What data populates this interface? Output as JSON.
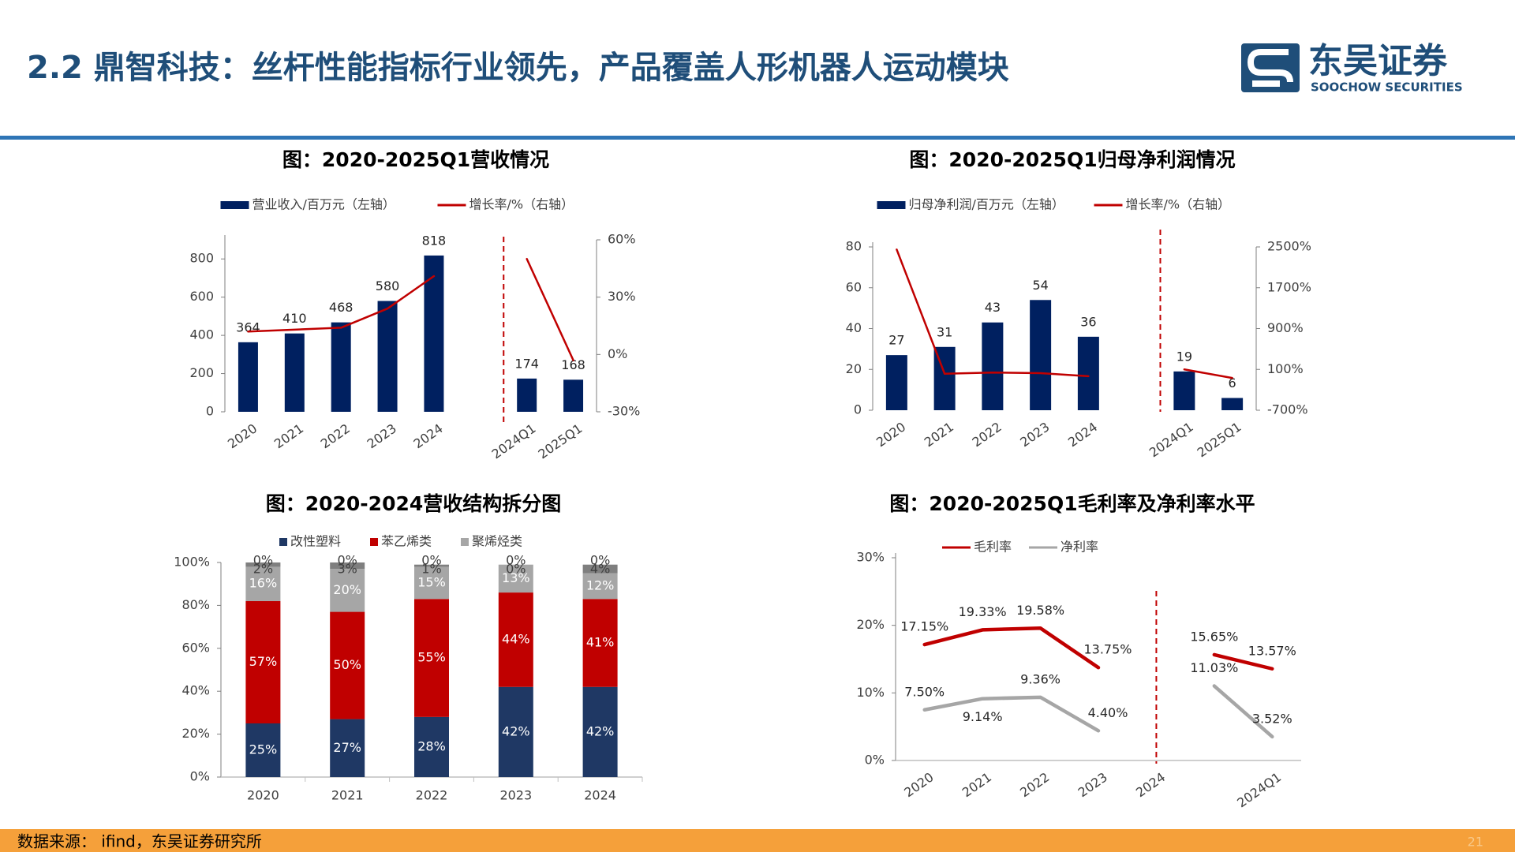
{
  "header": {
    "title": "2.2 鼎智科技：丝杆性能指标行业领先，产品覆盖人形机器人运动模块",
    "logo": "东吴证券",
    "logo_en": "SOOCHOW SECURITIES"
  },
  "chart_data": [
    {
      "type": "bar",
      "title": "图：2020-2025Q1营收情况",
      "categories": [
        "2020",
        "2021",
        "2022",
        "2023",
        "2024",
        null,
        "2024Q1",
        "2025Q1"
      ],
      "series": [
        {
          "name": "营业收入/百万元（左轴）",
          "color": "#002060",
          "values": [
            364,
            410,
            468,
            580,
            818,
            null,
            174,
            168
          ],
          "data_labels": true
        },
        {
          "name": "增长率/%（右轴）",
          "type": "line",
          "axis": "y2",
          "color": "#c00000",
          "values": [
            12,
            13,
            14,
            24,
            41,
            null,
            50,
            -3
          ]
        }
      ],
      "ylim": [
        0,
        900
      ],
      "yticks": [
        0,
        200,
        400,
        600,
        800
      ],
      "y2lim": [
        -30,
        60
      ],
      "y2ticks": [
        {
          "value": -30,
          "label": "-30%"
        },
        {
          "value": 0,
          "label": "0%"
        },
        {
          "value": 30,
          "label": "30%"
        },
        {
          "value": 60,
          "label": "60%"
        }
      ]
    },
    {
      "type": "bar",
      "title": "图：2020-2025Q1归母净利润情况",
      "categories": [
        "2020",
        "2021",
        "2022",
        "2023",
        "2024",
        null,
        "2024Q1",
        "2025Q1"
      ],
      "series": [
        {
          "name": "归母净利润/百万元（左轴）",
          "color": "#002060",
          "values": [
            27,
            31,
            43,
            54,
            36,
            null,
            19,
            6
          ],
          "data_labels": true
        },
        {
          "name": "增长率/%（右轴）",
          "type": "line",
          "axis": "y2",
          "color": "#c00000",
          "values": [
            2450,
            15,
            39,
            26,
            -33,
            null,
            100,
            -68
          ]
        }
      ],
      "ylim": [
        0,
        80
      ],
      "yticks": [
        0,
        20,
        40,
        60,
        80
      ],
      "y2lim": [
        -700,
        2500
      ],
      "y2ticks": [
        {
          "value": -700,
          "label": "-700%"
        },
        {
          "value": 100,
          "label": "100%"
        },
        {
          "value": 900,
          "label": "900%"
        },
        {
          "value": 1700,
          "label": "1700%"
        },
        {
          "value": 2500,
          "label": "2500%"
        }
      ]
    },
    {
      "type": "bar",
      "stacked": true,
      "title": "图：2020-2024营收结构拆分图",
      "categories": [
        "2020",
        "2021",
        "2022",
        "2023",
        "2024"
      ],
      "series": [
        {
          "name": "改性塑料",
          "color": "#1f3864",
          "values": [
            25,
            27,
            28,
            42,
            42
          ],
          "value_labels": [
            "25%",
            "27%",
            "28%",
            "42%",
            "42%"
          ]
        },
        {
          "name": "苯乙烯类",
          "color": "#c00000",
          "values": [
            57,
            50,
            55,
            44,
            41
          ],
          "value_labels": [
            "57%",
            "50%",
            "55%",
            "44%",
            "41%"
          ]
        },
        {
          "name": "聚烯烃类",
          "color": "#a6a6a6",
          "values": [
            16,
            20,
            15,
            13,
            12
          ],
          "value_labels": [
            "16%",
            "20%",
            "15%",
            "13%",
            "12%"
          ]
        },
        {
          "color": "#7f7f7f",
          "values": [
            2,
            3,
            1,
            0,
            4
          ],
          "value_labels": [
            "2%",
            "3%",
            "1%",
            "0%",
            "4%"
          ]
        },
        {
          "color": "#262626",
          "values": [
            0,
            0,
            0,
            0,
            0
          ],
          "value_labels": [
            "0%",
            "0%",
            "0%",
            "0%",
            "0%"
          ]
        }
      ],
      "ylim": [
        0,
        100
      ],
      "yticks": [
        {
          "value": 0,
          "label": "0%"
        },
        {
          "value": 20,
          "label": "20%"
        },
        {
          "value": 40,
          "label": "40%"
        },
        {
          "value": 60,
          "label": "60%"
        },
        {
          "value": 80,
          "label": "80%"
        },
        {
          "value": 100,
          "label": "100%"
        }
      ]
    },
    {
      "type": "line",
      "title": "图：2020-2025Q1毛利率及净利率水平",
      "categories": [
        "2020",
        "2021",
        "2022",
        "2023",
        "2024",
        null,
        "2024Q1"
      ],
      "series": [
        {
          "name": "毛利率",
          "color": "#c00000",
          "values": [
            17.15,
            19.33,
            19.58,
            13.75,
            null,
            15.65,
            13.57
          ],
          "value_labels": [
            "17.15%",
            "19.33%",
            "19.58%",
            "13.75%",
            null,
            "15.65%",
            "13.57%"
          ]
        },
        {
          "name": "净利率",
          "color": "#a6a6a6",
          "values": [
            7.5,
            9.14,
            9.36,
            4.4,
            null,
            11.03,
            3.52
          ],
          "value_labels": [
            "7.50%",
            "9.14%",
            "9.36%",
            "4.40%",
            null,
            "11.03%",
            "3.52%"
          ]
        }
      ],
      "ylim": [
        0,
        30
      ],
      "yticks": [
        {
          "value": 0,
          "label": "0%"
        },
        {
          "value": 10,
          "label": "10%"
        },
        {
          "value": 20,
          "label": "20%"
        },
        {
          "value": 30,
          "label": "30%"
        }
      ]
    }
  ],
  "footer": {
    "source": "数据来源： ifind，东吴证券研究所",
    "page": "21"
  }
}
